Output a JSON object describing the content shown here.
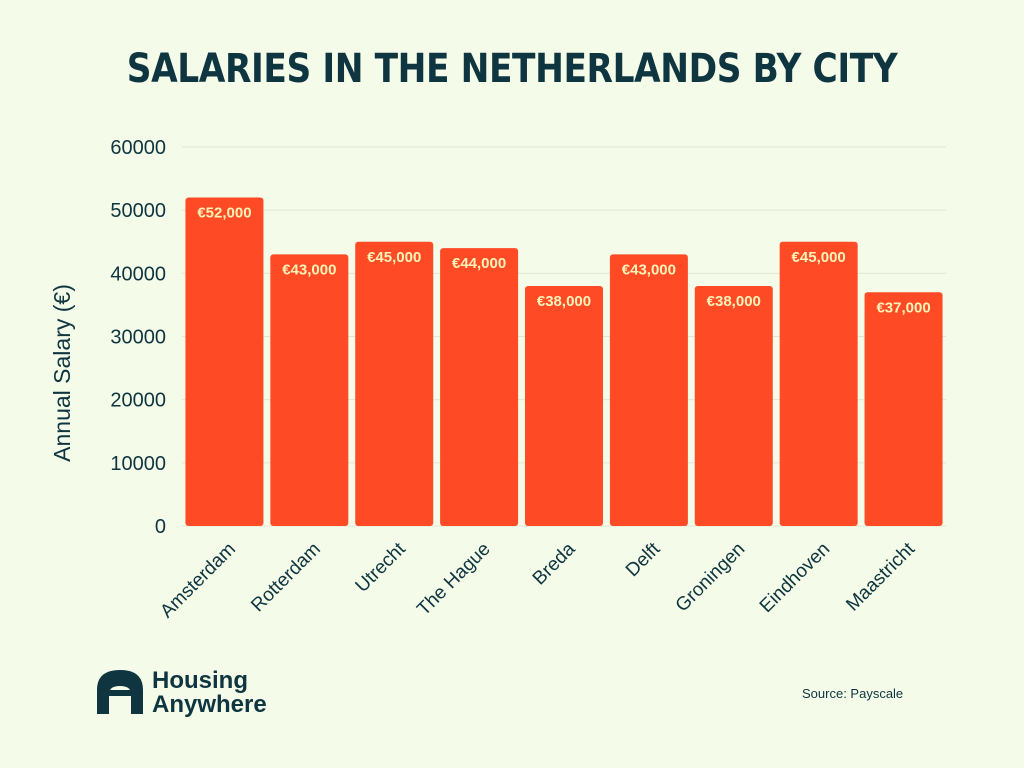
{
  "chart_data": {
    "type": "bar",
    "title": "SALARIES IN THE NETHERLANDS BY CITY",
    "ylabel": "Annual Salary (€)",
    "xlabel": "",
    "categories": [
      "Amsterdam",
      "Rotterdam",
      "Utrecht",
      "The Hague",
      "Breda",
      "Delft",
      "Groningen",
      "Eindhoven",
      "Maastricht"
    ],
    "values": [
      52000,
      43000,
      45000,
      44000,
      38000,
      43000,
      38000,
      45000,
      37000
    ],
    "data_labels": [
      "€52,000",
      "€43,000",
      "€45,000",
      "€44,000",
      "€38,000",
      "€43,000",
      "€38,000",
      "€45,000",
      "€37,000"
    ],
    "yticks": [
      "0",
      "10000",
      "20000",
      "30000",
      "40000",
      "50000",
      "60000"
    ],
    "ylim": [
      0,
      60000
    ],
    "grid": true,
    "colors": {
      "bar": "#ff4b25",
      "label": "#fff3b8",
      "text": "#0f3540",
      "background": "#f4fbe9"
    }
  },
  "brand": {
    "line1": "Housing",
    "line2": "Anywhere",
    "logo_icon": "house-arch-icon"
  },
  "source": "Source: Payscale"
}
